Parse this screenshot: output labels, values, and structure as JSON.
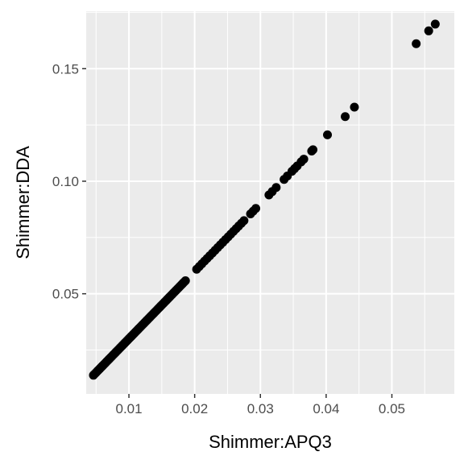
{
  "chart_data": {
    "type": "scatter",
    "title": "",
    "xlabel": "Shimmer:APQ3",
    "ylabel": "Shimmer:DDA",
    "xlim": [
      0.0035,
      0.0595
    ],
    "ylim": [
      0.0055,
      0.1755
    ],
    "x_ticks": [
      {
        "value": 0.01,
        "label": "0.01"
      },
      {
        "value": 0.02,
        "label": "0.02"
      },
      {
        "value": 0.03,
        "label": "0.03"
      },
      {
        "value": 0.04,
        "label": "0.04"
      },
      {
        "value": 0.05,
        "label": "0.05"
      }
    ],
    "y_ticks": [
      {
        "value": 0.05,
        "label": "0.05"
      },
      {
        "value": 0.1,
        "label": "0.10"
      },
      {
        "value": 0.15,
        "label": "0.15"
      }
    ],
    "grid": true,
    "legend": "none",
    "colors": {
      "panel": "#ebebeb",
      "grid": "#ffffff",
      "point": "#000000"
    },
    "series": [
      {
        "points": [
          [
            0.0046,
            0.0138
          ],
          [
            0.0048,
            0.0144
          ],
          [
            0.005,
            0.015
          ],
          [
            0.0052,
            0.0156
          ],
          [
            0.0054,
            0.0162
          ],
          [
            0.0056,
            0.0168
          ],
          [
            0.0058,
            0.0174
          ],
          [
            0.006,
            0.018
          ],
          [
            0.0062,
            0.0186
          ],
          [
            0.0064,
            0.0192
          ],
          [
            0.0066,
            0.0198
          ],
          [
            0.0068,
            0.0204
          ],
          [
            0.007,
            0.021
          ],
          [
            0.0072,
            0.0216
          ],
          [
            0.0074,
            0.0222
          ],
          [
            0.0076,
            0.0228
          ],
          [
            0.0078,
            0.0234
          ],
          [
            0.008,
            0.024
          ],
          [
            0.0082,
            0.0246
          ],
          [
            0.0084,
            0.0252
          ],
          [
            0.0086,
            0.0258
          ],
          [
            0.0088,
            0.0264
          ],
          [
            0.009,
            0.027
          ],
          [
            0.0092,
            0.0276
          ],
          [
            0.0094,
            0.0282
          ],
          [
            0.0096,
            0.0288
          ],
          [
            0.0098,
            0.0294
          ],
          [
            0.01,
            0.03
          ],
          [
            0.0102,
            0.0306
          ],
          [
            0.0104,
            0.0312
          ],
          [
            0.0106,
            0.0318
          ],
          [
            0.0108,
            0.0324
          ],
          [
            0.011,
            0.033
          ],
          [
            0.0112,
            0.0336
          ],
          [
            0.0114,
            0.0342
          ],
          [
            0.0116,
            0.0348
          ],
          [
            0.0118,
            0.0354
          ],
          [
            0.012,
            0.036
          ],
          [
            0.0122,
            0.0366
          ],
          [
            0.0124,
            0.0372
          ],
          [
            0.0126,
            0.0378
          ],
          [
            0.0128,
            0.0384
          ],
          [
            0.013,
            0.039
          ],
          [
            0.0132,
            0.0396
          ],
          [
            0.0134,
            0.0402
          ],
          [
            0.0136,
            0.0408
          ],
          [
            0.0138,
            0.0414
          ],
          [
            0.014,
            0.042
          ],
          [
            0.0142,
            0.0426
          ],
          [
            0.0144,
            0.0432
          ],
          [
            0.0146,
            0.0438
          ],
          [
            0.0148,
            0.0444
          ],
          [
            0.015,
            0.045
          ],
          [
            0.0152,
            0.0456
          ],
          [
            0.0154,
            0.0462
          ],
          [
            0.0156,
            0.0468
          ],
          [
            0.0158,
            0.0474
          ],
          [
            0.016,
            0.048
          ],
          [
            0.0162,
            0.0486
          ],
          [
            0.0164,
            0.0492
          ],
          [
            0.0166,
            0.0498
          ],
          [
            0.0168,
            0.0504
          ],
          [
            0.017,
            0.051
          ],
          [
            0.0172,
            0.0516
          ],
          [
            0.0174,
            0.0522
          ],
          [
            0.0176,
            0.0528
          ],
          [
            0.0178,
            0.0534
          ],
          [
            0.018,
            0.054
          ],
          [
            0.0182,
            0.0546
          ],
          [
            0.0184,
            0.0552
          ],
          [
            0.0186,
            0.0558
          ],
          [
            0.0203,
            0.0609
          ],
          [
            0.0207,
            0.0621
          ],
          [
            0.0211,
            0.0633
          ],
          [
            0.0215,
            0.0645
          ],
          [
            0.0219,
            0.0657
          ],
          [
            0.0223,
            0.0669
          ],
          [
            0.0227,
            0.0681
          ],
          [
            0.0231,
            0.0693
          ],
          [
            0.0235,
            0.0705
          ],
          [
            0.0239,
            0.0717
          ],
          [
            0.0243,
            0.0729
          ],
          [
            0.0247,
            0.0741
          ],
          [
            0.0251,
            0.0753
          ],
          [
            0.0255,
            0.0765
          ],
          [
            0.0259,
            0.0777
          ],
          [
            0.0263,
            0.0789
          ],
          [
            0.0267,
            0.0801
          ],
          [
            0.0271,
            0.0813
          ],
          [
            0.0275,
            0.0825
          ],
          [
            0.0285,
            0.0855
          ],
          [
            0.0289,
            0.0867
          ],
          [
            0.0293,
            0.0879
          ],
          [
            0.0313,
            0.0939
          ],
          [
            0.0318,
            0.0954
          ],
          [
            0.0324,
            0.0972
          ],
          [
            0.0336,
            0.1008
          ],
          [
            0.0341,
            0.1023
          ],
          [
            0.0348,
            0.1044
          ],
          [
            0.0352,
            0.1056
          ],
          [
            0.0356,
            0.1068
          ],
          [
            0.0362,
            0.1086
          ],
          [
            0.0366,
            0.1098
          ],
          [
            0.0378,
            0.1134
          ],
          [
            0.038,
            0.114
          ],
          [
            0.0402,
            0.1206
          ],
          [
            0.0429,
            0.1287
          ],
          [
            0.0443,
            0.1329
          ],
          [
            0.0537,
            0.1611
          ],
          [
            0.0556,
            0.1668
          ],
          [
            0.0566,
            0.1698
          ]
        ]
      }
    ]
  }
}
